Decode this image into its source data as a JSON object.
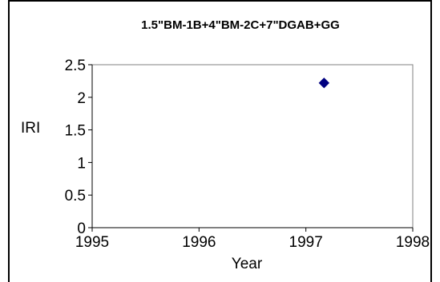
{
  "chart_data": {
    "type": "scatter",
    "title": "1.5\"BM-1B+4\"BM-2C+7\"DGAB+GG",
    "xlabel": "Year",
    "ylabel": "IRI",
    "xlim": [
      1995,
      1998
    ],
    "ylim": [
      0,
      2.5
    ],
    "x_ticks": [
      "1995",
      "1996",
      "1997",
      "1998"
    ],
    "y_ticks": [
      "0",
      "0.5",
      "1",
      "1.5",
      "2",
      "2.5"
    ],
    "grid": false,
    "legend": "none",
    "series": [
      {
        "color": "#000080",
        "marker": "diamond",
        "points": [
          {
            "x": 1997.17,
            "y": 2.22
          }
        ]
      }
    ]
  }
}
